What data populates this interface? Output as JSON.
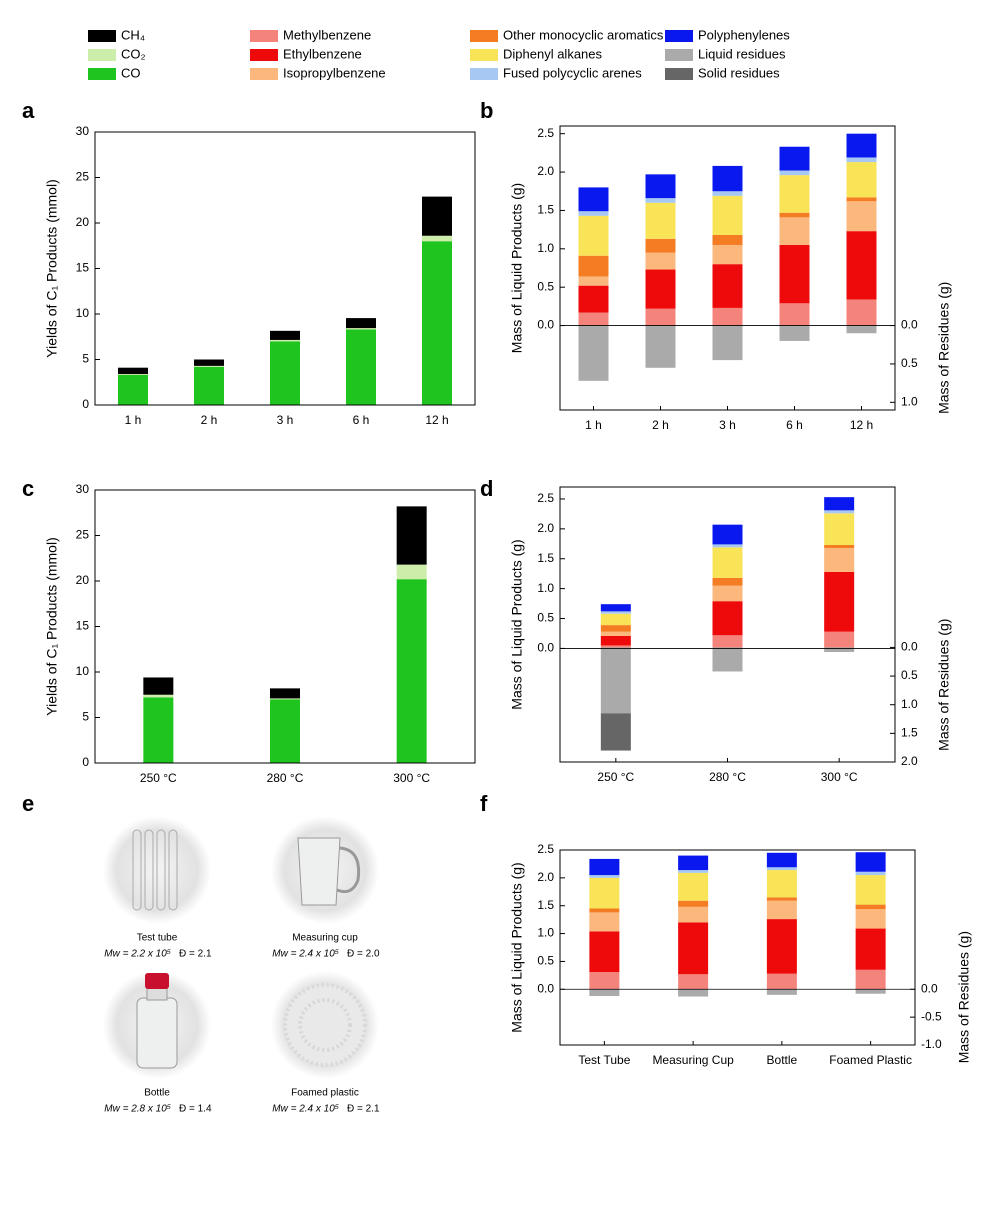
{
  "legend": [
    {
      "name": "CH₄",
      "color": "#000000"
    },
    {
      "name": "CO₂",
      "color": "#cdeeaa"
    },
    {
      "name": "CO",
      "color": "#1fc41f"
    },
    {
      "name": "Methylbenzene",
      "color": "#f4837b"
    },
    {
      "name": "Ethylbenzene",
      "color": "#ee0a0a"
    },
    {
      "name": "Isopropylbenzene",
      "color": "#fbb77c"
    },
    {
      "name": "Other monocyclic aromatics",
      "color": "#f47c22"
    },
    {
      "name": "Diphenyl alkanes",
      "color": "#f9e356"
    },
    {
      "name": "Fused polycyclic arenes",
      "color": "#a6c8f2"
    },
    {
      "name": "Polyphenylenes",
      "color": "#0a18f0"
    },
    {
      "name": "Liquid residues",
      "color": "#aaaaaa"
    },
    {
      "name": "Solid residues",
      "color": "#666666"
    }
  ],
  "chart_data": [
    {
      "type": "bar",
      "panel": "a",
      "y_label": "Yields of C₁ Products (mmol)",
      "categories": [
        "1 h",
        "2 h",
        "3 h",
        "6 h",
        "12 h"
      ],
      "series": [
        {
          "name": "CO",
          "values": [
            3.3,
            4.2,
            7.0,
            8.3,
            18.0
          ]
        },
        {
          "name": "CO₂",
          "values": [
            0.1,
            0.1,
            0.15,
            0.15,
            0.6
          ]
        },
        {
          "name": "CH₄",
          "values": [
            0.7,
            0.7,
            1.0,
            1.1,
            4.3
          ]
        }
      ],
      "ylim": [
        0,
        30
      ],
      "yticks": [
        0,
        5,
        10,
        15,
        20,
        25,
        30
      ]
    },
    {
      "type": "bar",
      "panel": "b",
      "y_label": "Mass of Liquid Products (g)",
      "y2_label": "Mass of Residues (g)",
      "categories": [
        "1 h",
        "2 h",
        "3 h",
        "6 h",
        "12 h"
      ],
      "series": [
        {
          "name": "Methylbenzene",
          "values": [
            0.17,
            0.22,
            0.23,
            0.29,
            0.34
          ]
        },
        {
          "name": "Ethylbenzene",
          "values": [
            0.35,
            0.51,
            0.57,
            0.76,
            0.89
          ]
        },
        {
          "name": "Isopropylbenzene",
          "values": [
            0.12,
            0.22,
            0.25,
            0.36,
            0.39
          ]
        },
        {
          "name": "Other monocyclic aromatics",
          "values": [
            0.27,
            0.18,
            0.13,
            0.06,
            0.05
          ]
        },
        {
          "name": "Diphenyl alkanes",
          "values": [
            0.52,
            0.47,
            0.51,
            0.49,
            0.46
          ]
        },
        {
          "name": "Fused polycyclic arenes",
          "values": [
            0.06,
            0.06,
            0.06,
            0.06,
            0.06
          ]
        },
        {
          "name": "Polyphenylenes",
          "values": [
            0.31,
            0.31,
            0.33,
            0.31,
            0.31
          ]
        },
        {
          "name": "Liquid residues",
          "axis": "y2",
          "values": [
            0.72,
            0.55,
            0.45,
            0.2,
            0.1
          ]
        }
      ],
      "ylim": [
        -1.1,
        2.6
      ],
      "yticks": [
        {
          "value": 0,
          "label": "0.0"
        },
        0.5,
        {
          "value": 1,
          "label": "1.0"
        },
        1.5,
        {
          "value": 2,
          "label": "2.0"
        },
        2.5
      ],
      "y2lim": [
        1.1,
        -2.6
      ],
      "y2ticks": [
        {
          "value": 0,
          "label": "0.0"
        },
        0.5,
        {
          "value": 1,
          "label": "1.0"
        }
      ]
    },
    {
      "type": "bar",
      "panel": "c",
      "y_label": "Yields of C₁ Products (mmol)",
      "categories": [
        "250 °C",
        "280 °C",
        "300 °C"
      ],
      "series": [
        {
          "name": "CO",
          "values": [
            7.2,
            7.0,
            20.2
          ]
        },
        {
          "name": "CO₂",
          "values": [
            0.3,
            0.1,
            1.6
          ]
        },
        {
          "name": "CH₄",
          "values": [
            1.9,
            1.1,
            6.4
          ]
        }
      ],
      "ylim": [
        0,
        30
      ],
      "yticks": [
        0,
        5,
        10,
        15,
        20,
        25,
        30
      ]
    },
    {
      "type": "bar",
      "panel": "d",
      "y_label": "Mass of Liquid Products (g)",
      "y2_label": "Mass of Residues (g)",
      "categories": [
        "250 °C",
        "280 °C",
        "300 °C"
      ],
      "series": [
        {
          "name": "Methylbenzene",
          "values": [
            0.05,
            0.22,
            0.28
          ]
        },
        {
          "name": "Ethylbenzene",
          "values": [
            0.16,
            0.57,
            1.0
          ]
        },
        {
          "name": "Isopropylbenzene",
          "values": [
            0.07,
            0.26,
            0.4
          ]
        },
        {
          "name": "Other monocyclic aromatics",
          "values": [
            0.11,
            0.13,
            0.05
          ]
        },
        {
          "name": "Diphenyl alkanes",
          "values": [
            0.19,
            0.51,
            0.53
          ]
        },
        {
          "name": "Fused polycyclic arenes",
          "values": [
            0.04,
            0.05,
            0.05
          ]
        },
        {
          "name": "Polyphenylenes",
          "values": [
            0.12,
            0.33,
            0.22
          ]
        },
        {
          "name": "Liquid residues",
          "axis": "y2",
          "values": [
            1.15,
            0.42,
            0.08
          ]
        },
        {
          "name": "Solid residues",
          "axis": "y2",
          "values": [
            0.65,
            null,
            null
          ]
        }
      ],
      "ylim": [
        -1.9,
        2.7
      ],
      "yticks": [
        {
          "value": 0,
          "label": "0.0"
        },
        0.5,
        {
          "value": 1,
          "label": "1.0"
        },
        1.5,
        {
          "value": 2,
          "label": "2.0"
        },
        2.5
      ],
      "y2lim": [
        2.0,
        -2.8
      ],
      "y2ticks": [
        {
          "value": 0,
          "label": "0.0"
        },
        0.5,
        {
          "value": 1,
          "label": "1.0"
        },
        1.5,
        {
          "value": 2,
          "label": "2.0"
        }
      ]
    },
    {
      "type": "bar",
      "panel": "f",
      "y_label": "Mass of Liquid Products (g)",
      "y2_label": "Mass of Residues (g)",
      "categories": [
        "Test Tube",
        "Measuring Cup",
        "Bottle",
        "Foamed Plastic"
      ],
      "series": [
        {
          "name": "Methylbenzene",
          "values": [
            0.31,
            0.27,
            0.28,
            0.35
          ]
        },
        {
          "name": "Ethylbenzene",
          "values": [
            0.73,
            0.93,
            0.98,
            0.74
          ]
        },
        {
          "name": "Isopropylbenzene",
          "values": [
            0.34,
            0.28,
            0.33,
            0.35
          ]
        },
        {
          "name": "Other monocyclic aromatics",
          "values": [
            0.07,
            0.11,
            0.06,
            0.08
          ]
        },
        {
          "name": "Diphenyl alkanes",
          "values": [
            0.55,
            0.5,
            0.49,
            0.53
          ]
        },
        {
          "name": "Fused polycyclic arenes",
          "values": [
            0.05,
            0.05,
            0.05,
            0.06
          ]
        },
        {
          "name": "Polyphenylenes",
          "values": [
            0.29,
            0.26,
            0.26,
            0.35
          ]
        },
        {
          "name": "Liquid residues",
          "axis": "y2",
          "values": [
            -0.12,
            -0.13,
            -0.1,
            -0.08
          ]
        }
      ],
      "ylim": [
        -1.0,
        2.5
      ],
      "yticks": [
        {
          "value": 0,
          "label": "0.0"
        },
        0.5,
        {
          "value": 1,
          "label": "1.0"
        },
        1.5,
        {
          "value": 2,
          "label": "2.0"
        },
        2.5
      ],
      "y2lim": [
        -1.0,
        2.5
      ],
      "y2ticks": [
        {
          "value": 0,
          "label": "0.0"
        },
        -0.5,
        {
          "value": -1,
          "label": "-1.0"
        }
      ]
    }
  ],
  "photos": {
    "panel": "e",
    "items": [
      {
        "caption": "Test tube",
        "mw": "Mw = 2.2 x 10⁵",
        "dispersity": "Đ = 2.1"
      },
      {
        "caption": "Measuring cup",
        "mw": "Mw = 2.4 x 10⁵",
        "dispersity": "Đ = 2.0"
      },
      {
        "caption": "Bottle",
        "mw": "Mw = 2.8 x 10⁵",
        "dispersity": "Đ = 1.4"
      },
      {
        "caption": "Foamed plastic",
        "mw": "Mw = 2.4 x 10⁵",
        "dispersity": "Đ = 2.1"
      }
    ]
  }
}
